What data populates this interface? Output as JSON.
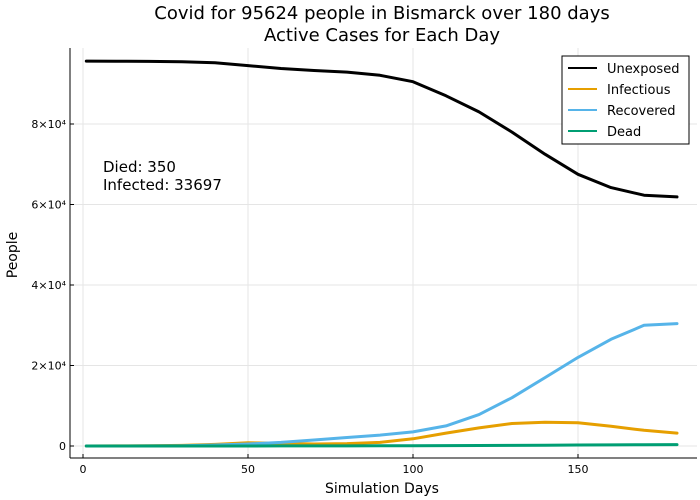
{
  "chart_data": {
    "type": "line",
    "title": "Covid for 95624 people in Bismarck over 180 days",
    "subtitle": "Active Cases for Each Day",
    "xlabel": "Simulation Days",
    "ylabel": "People",
    "xlim": [
      0,
      180
    ],
    "ylim": [
      0,
      95624
    ],
    "grid": true,
    "legend_position": "top-right",
    "xticks": [
      0,
      50,
      100,
      150
    ],
    "xtick_labels": [
      "0",
      "50",
      "100",
      "150"
    ],
    "yticks": [
      0,
      20000,
      40000,
      60000,
      80000
    ],
    "ytick_labels": [
      "0",
      "2×10⁴",
      "4×10⁴",
      "6×10⁴",
      "8×10⁴"
    ],
    "annotations": [
      "Died: 350",
      "Infected: 33697"
    ],
    "x": [
      1,
      10,
      20,
      30,
      40,
      50,
      60,
      70,
      80,
      90,
      100,
      110,
      120,
      130,
      140,
      150,
      160,
      170,
      180
    ],
    "series": [
      {
        "name": "Unexposed",
        "color": "#000000",
        "values": [
          95624,
          95600,
          95550,
          95450,
          95200,
          94500,
          93800,
          93300,
          92900,
          92100,
          90500,
          87000,
          83000,
          78000,
          72500,
          67500,
          64200,
          62300,
          61900
        ]
      },
      {
        "name": "Infectious",
        "color": "#e69f00",
        "values": [
          10,
          20,
          50,
          150,
          400,
          800,
          700,
          500,
          600,
          900,
          1800,
          3200,
          4500,
          5600,
          5900,
          5800,
          4900,
          3900,
          3200
        ]
      },
      {
        "name": "Recovered",
        "color": "#56b4e9",
        "values": [
          0,
          5,
          20,
          80,
          250,
          500,
          900,
          1500,
          2100,
          2700,
          3500,
          5000,
          7800,
          12000,
          17000,
          22000,
          26500,
          30000,
          30400
        ]
      },
      {
        "name": "Dead",
        "color": "#009e73",
        "values": [
          0,
          0,
          1,
          2,
          5,
          10,
          15,
          25,
          35,
          50,
          70,
          90,
          120,
          160,
          200,
          240,
          280,
          320,
          350
        ]
      }
    ]
  }
}
